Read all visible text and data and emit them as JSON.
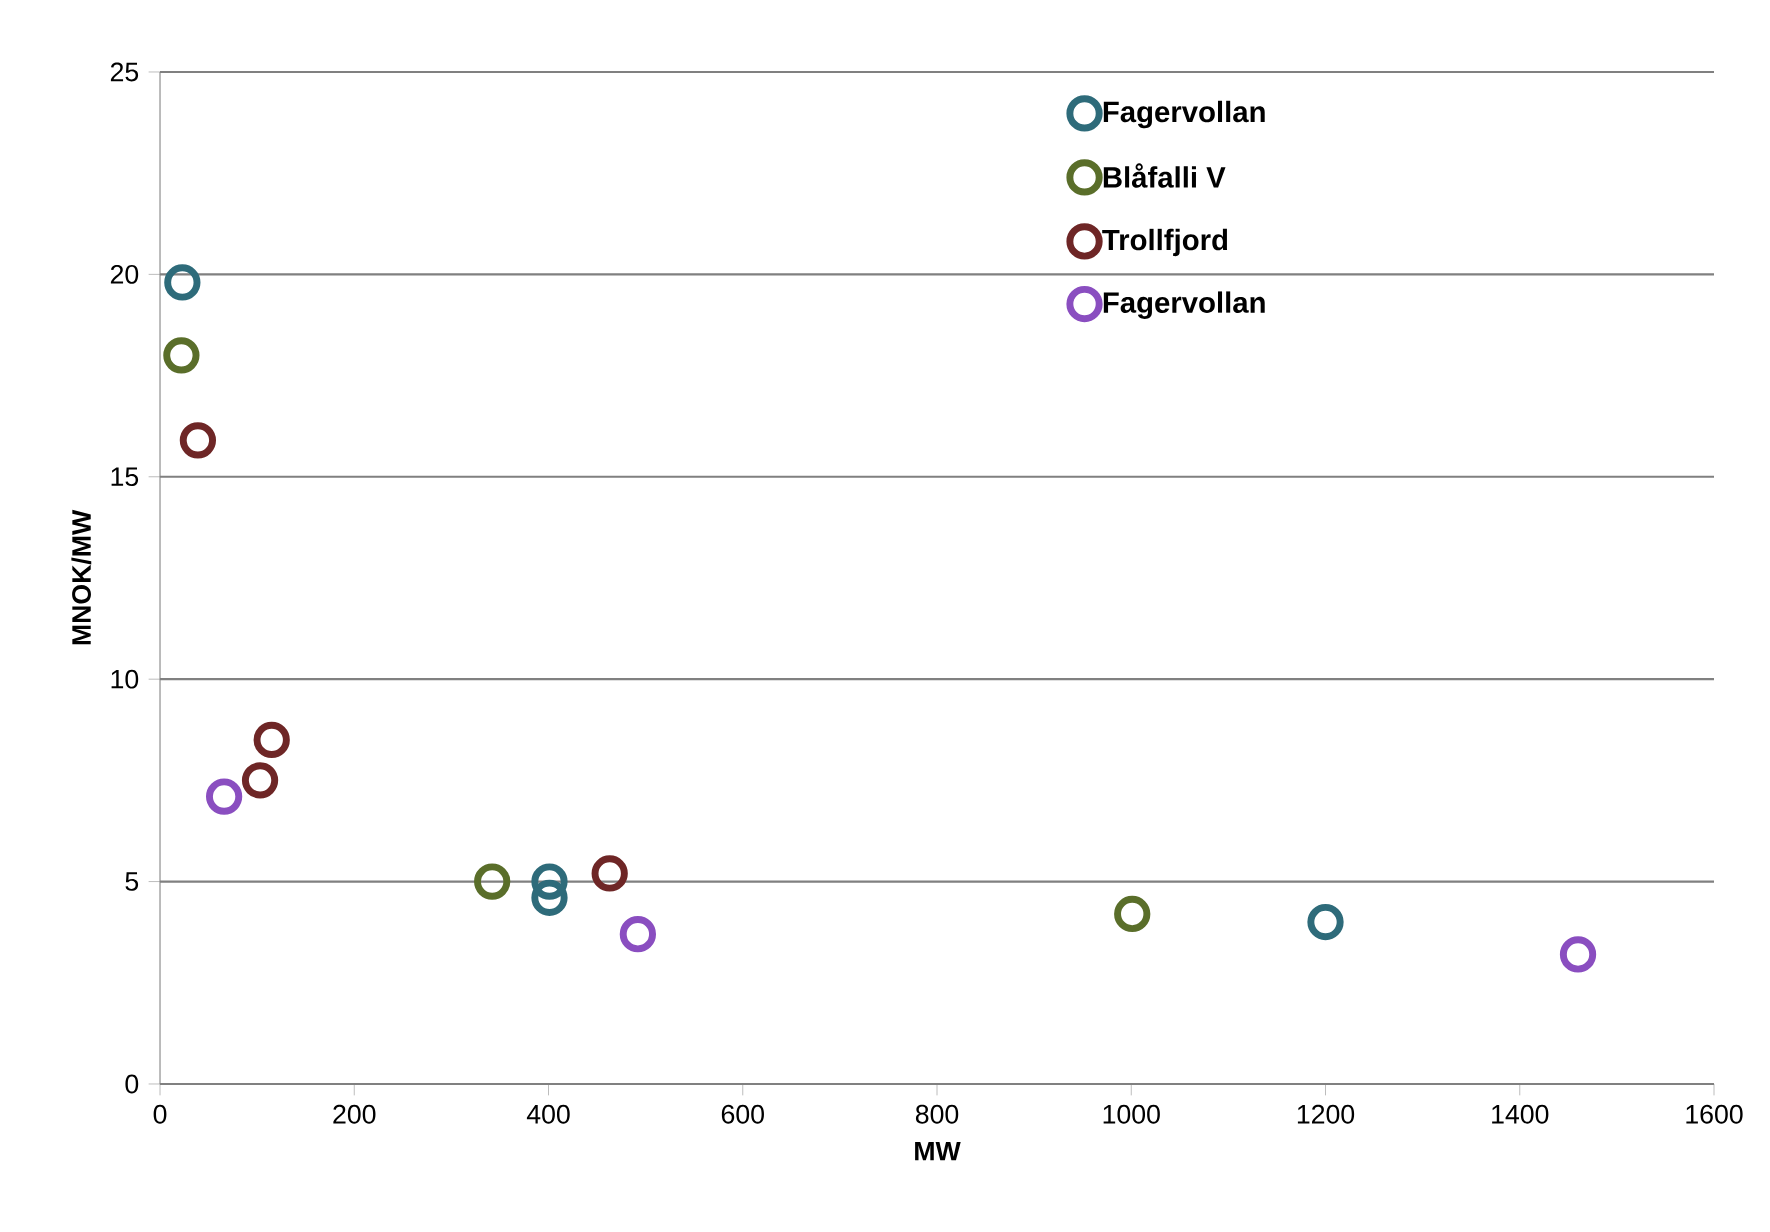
{
  "chart_data": {
    "type": "scatter",
    "xlabel": "MW",
    "ylabel": "MNOK/MW",
    "xlim": [
      0,
      1600
    ],
    "ylim": [
      0,
      25
    ],
    "xticks": [
      0,
      200,
      400,
      600,
      800,
      1000,
      1200,
      1400,
      1600
    ],
    "yticks": [
      0,
      5,
      10,
      15,
      20,
      25
    ],
    "grid": "y",
    "legend": "top right",
    "marker": "circle",
    "series": [
      {
        "name": "Fagervollan",
        "color": "#2e6b7a",
        "x": [
          23,
          401,
          401,
          1200
        ],
        "values": [
          19.8,
          5.0,
          4.6,
          4.0
        ]
      },
      {
        "name": "Blåfalli V",
        "color": "#5a6e2a",
        "x": [
          22,
          342,
          1001
        ],
        "values": [
          18.0,
          5.0,
          4.2
        ]
      },
      {
        "name": "Trollfjord",
        "color": "#6e2626",
        "x": [
          39,
          115,
          103,
          463
        ],
        "values": [
          15.9,
          8.5,
          7.5,
          5.2
        ]
      },
      {
        "name": "Fagervollan",
        "color": "#8a4ec0",
        "x": [
          66,
          492,
          1460
        ],
        "values": [
          7.1,
          3.7,
          3.2
        ]
      }
    ]
  }
}
